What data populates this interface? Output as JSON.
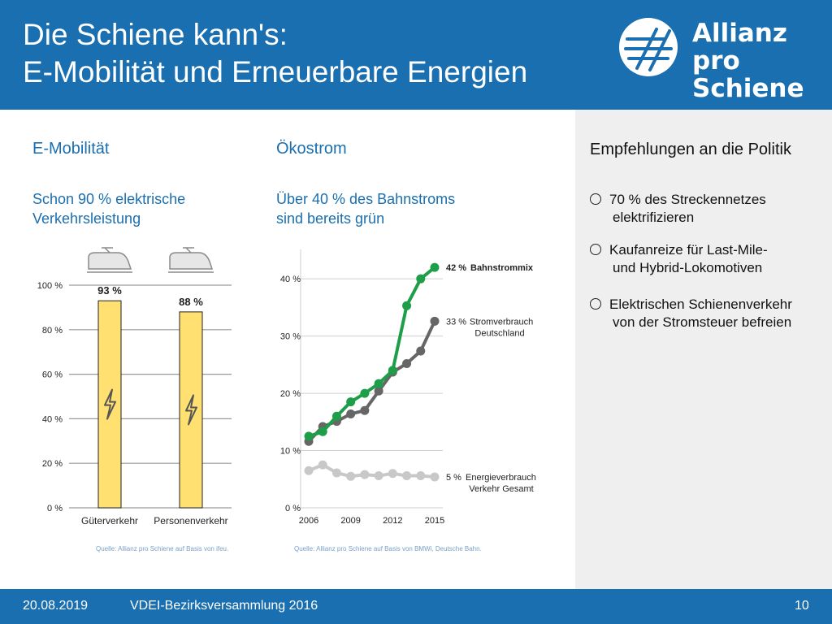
{
  "header": {
    "title_line1": "Die Schiene kann's:",
    "title_line2": "E-Mobilität und Erneuerbare Energien",
    "logo_line1": "Allianz",
    "logo_line2": "pro Schiene"
  },
  "left": {
    "section": "E-Mobilität",
    "subtitle_line1": "Schon 90 % elektrische",
    "subtitle_line2": "Verkehrsleistung",
    "source": "Quelle: Allianz pro Schiene auf Basis von ifeu."
  },
  "middle": {
    "section": "Ökostrom",
    "subtitle_line1": "Über 40 % des Bahnstroms",
    "subtitle_line2": "sind bereits grün",
    "source": "Quelle: Allianz pro Schiene auf Basis von BMWi, Deutsche Bahn."
  },
  "side": {
    "title": "Empfehlungen an die Politik",
    "items": [
      {
        "line1": "70 % des Streckennetzes",
        "line2": "elektrifizieren"
      },
      {
        "line1": "Kaufanreize für Last-Mile-",
        "line2": "und Hybrid-Lokomotiven"
      },
      {
        "line1": "Elektrischen Schienenverkehr",
        "line2": "von der Stromsteuer befreien"
      }
    ]
  },
  "footer": {
    "date": "20.08.2019",
    "event": "VDEI-Bezirksversammlung 2016",
    "page": "10"
  },
  "colors": {
    "header_blue": "#1a6fb0",
    "bar_fill": "#ffe070",
    "bahnstrom_green": "#1e9e48",
    "stromverbrauch_gray": "#666666",
    "verkehr_light_gray": "#c8c8c8"
  },
  "chart_data": [
    {
      "type": "bar",
      "categories": [
        "Güterverkehr",
        "Personenverkehr"
      ],
      "values": [
        93,
        88
      ],
      "data_labels": [
        "93 %",
        "88 %"
      ],
      "yticks": [
        "0 %",
        "20 %",
        "40 %",
        "60 %",
        "80 %",
        "100 %"
      ],
      "ylim": [
        0,
        100
      ],
      "grid": true,
      "icons": [
        "train-icon",
        "lightning-icon"
      ]
    },
    {
      "type": "line",
      "x": [
        2006,
        2007,
        2008,
        2009,
        2010,
        2011,
        2012,
        2013,
        2014,
        2015
      ],
      "xticks": [
        "2006",
        "2009",
        "2012",
        "2015"
      ],
      "yticks": [
        "0 %",
        "10 %",
        "20 %",
        "30 %",
        "40 %"
      ],
      "ylim": [
        0,
        44
      ],
      "grid": true,
      "series": [
        {
          "name": "Bahnstrommix",
          "end_label": "42 %",
          "color": "#1e9e48",
          "values": [
            12.5,
            13.3,
            16,
            18.5,
            20,
            21.7,
            24,
            35.3,
            40,
            42
          ]
        },
        {
          "name": "Stromverbrauch Deutschland",
          "end_label": "33 %",
          "color": "#666666",
          "values": [
            11.6,
            14.2,
            15.1,
            16.4,
            17.0,
            20.4,
            23.7,
            25.2,
            27.4,
            32.6
          ]
        },
        {
          "name": "Energieverbrauch Verkehr Gesamt",
          "end_label": "5 %",
          "color": "#c8c8c8",
          "values": [
            6.5,
            7.5,
            6.1,
            5.5,
            5.8,
            5.6,
            6.0,
            5.6,
            5.6,
            5.4
          ]
        }
      ]
    }
  ]
}
